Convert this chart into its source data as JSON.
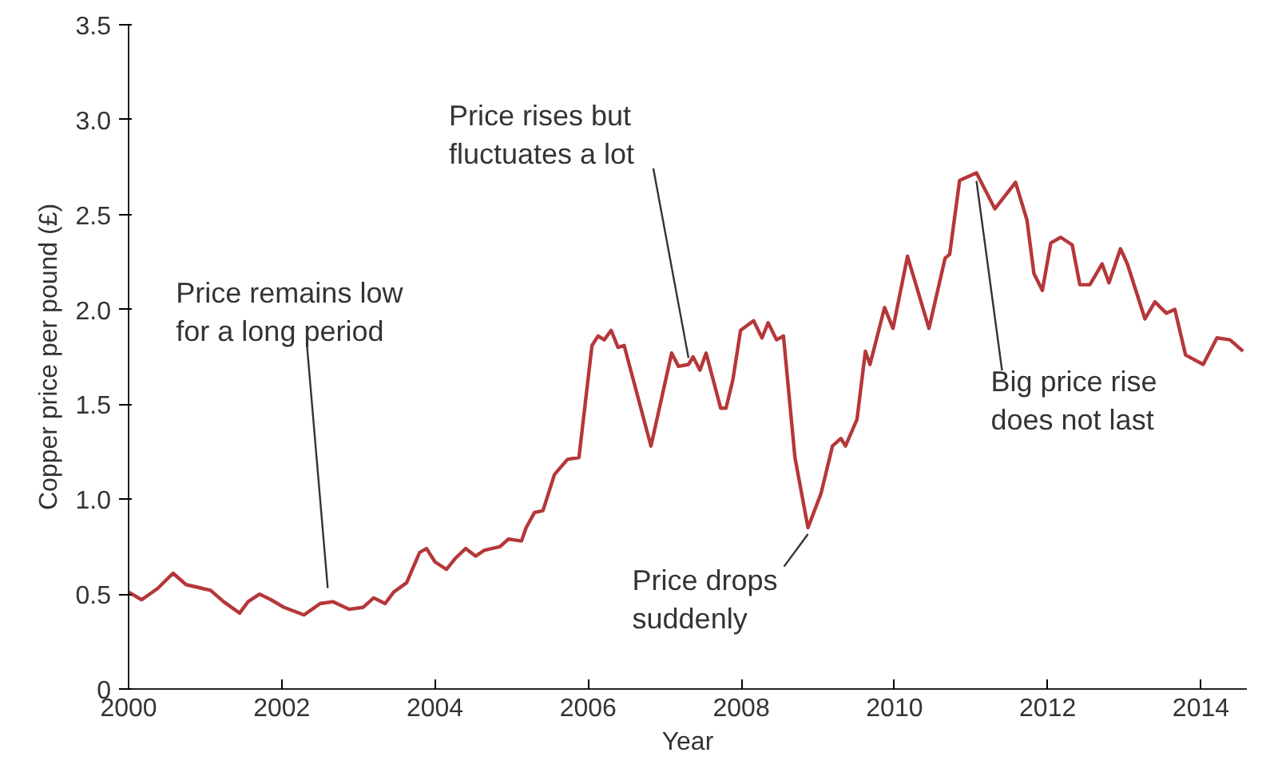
{
  "chart_data": {
    "type": "line",
    "xlabel": "Year",
    "ylabel": "Copper price per pound (£)",
    "x": [
      2000.0,
      2000.17,
      2000.38,
      2000.58,
      2000.75,
      2001.07,
      2001.24,
      2001.45,
      2001.56,
      2001.71,
      2001.86,
      2002.03,
      2002.29,
      2002.5,
      2002.67,
      2002.88,
      2003.06,
      2003.2,
      2003.35,
      2003.46,
      2003.63,
      2003.8,
      2003.89,
      2004.0,
      2004.15,
      2004.27,
      2004.4,
      2004.53,
      2004.64,
      2004.85,
      2004.96,
      2005.13,
      2005.19,
      2005.3,
      2005.41,
      2005.56,
      2005.73,
      2005.88,
      2006.05,
      2006.13,
      2006.21,
      2006.3,
      2006.39,
      2006.47,
      2006.82,
      2007.09,
      2007.18,
      2007.31,
      2007.37,
      2007.46,
      2007.54,
      2007.73,
      2007.8,
      2007.89,
      2007.99,
      2008.16,
      2008.27,
      2008.35,
      2008.46,
      2008.55,
      2008.7,
      2008.87,
      2009.04,
      2009.19,
      2009.3,
      2009.36,
      2009.51,
      2009.62,
      2009.68,
      2009.87,
      2009.98,
      2010.17,
      2010.45,
      2010.66,
      2010.72,
      2010.85,
      2011.07,
      2011.31,
      2011.58,
      2011.73,
      2011.82,
      2011.93,
      2012.04,
      2012.17,
      2012.32,
      2012.42,
      2012.55,
      2012.71,
      2012.8,
      2012.95,
      2013.04,
      2013.27,
      2013.4,
      2013.55,
      2013.66,
      2013.8,
      2014.03,
      2014.21,
      2014.38,
      2014.55
    ],
    "series": [
      {
        "color": "#b5373a",
        "values": [
          0.51,
          0.47,
          0.53,
          0.61,
          0.55,
          0.52,
          0.46,
          0.4,
          0.46,
          0.5,
          0.47,
          0.43,
          0.39,
          0.45,
          0.46,
          0.42,
          0.43,
          0.48,
          0.45,
          0.51,
          0.56,
          0.72,
          0.74,
          0.67,
          0.63,
          0.69,
          0.74,
          0.7,
          0.73,
          0.75,
          0.79,
          0.78,
          0.85,
          0.93,
          0.94,
          1.13,
          1.21,
          1.22,
          1.81,
          1.86,
          1.84,
          1.89,
          1.8,
          1.81,
          1.28,
          1.77,
          1.7,
          1.71,
          1.75,
          1.68,
          1.77,
          1.48,
          1.48,
          1.63,
          1.89,
          1.94,
          1.85,
          1.93,
          1.84,
          1.86,
          1.22,
          0.85,
          1.03,
          1.28,
          1.32,
          1.28,
          1.42,
          1.78,
          1.71,
          2.01,
          1.9,
          2.28,
          1.9,
          2.27,
          2.29,
          2.68,
          2.72,
          2.53,
          2.67,
          2.47,
          2.19,
          2.1,
          2.35,
          2.38,
          2.34,
          2.13,
          2.13,
          2.24,
          2.14,
          2.32,
          2.24,
          1.95,
          2.04,
          1.98,
          2.0,
          1.76,
          1.71,
          1.85,
          1.84,
          1.78
        ]
      }
    ],
    "xlim": [
      2000,
      2014.6
    ],
    "ylim": [
      0,
      3.5
    ],
    "xticks": [
      2000,
      2002,
      2004,
      2006,
      2008,
      2010,
      2012,
      2014
    ],
    "yticks": [
      0,
      0.5,
      {
        "value": 1,
        "label": "1.0"
      },
      1.5,
      {
        "value": 2,
        "label": "2.0"
      },
      2.5,
      {
        "value": 3,
        "label": "3.0"
      },
      3.5
    ],
    "grid": false,
    "line_style": "solid",
    "annotations": [
      {
        "text": "Price remains low\nfor a long period",
        "x": 2002.6,
        "y": 0.48
      },
      {
        "text": "Price rises but\nfluctuates a lot",
        "x": 2007.31,
        "y": 1.71
      },
      {
        "text": "Price drops\nsuddenly",
        "x": 2008.87,
        "y": 0.85
      },
      {
        "text": "Big price rise\ndoes not last",
        "x": 2011.07,
        "y": 2.72
      }
    ]
  }
}
